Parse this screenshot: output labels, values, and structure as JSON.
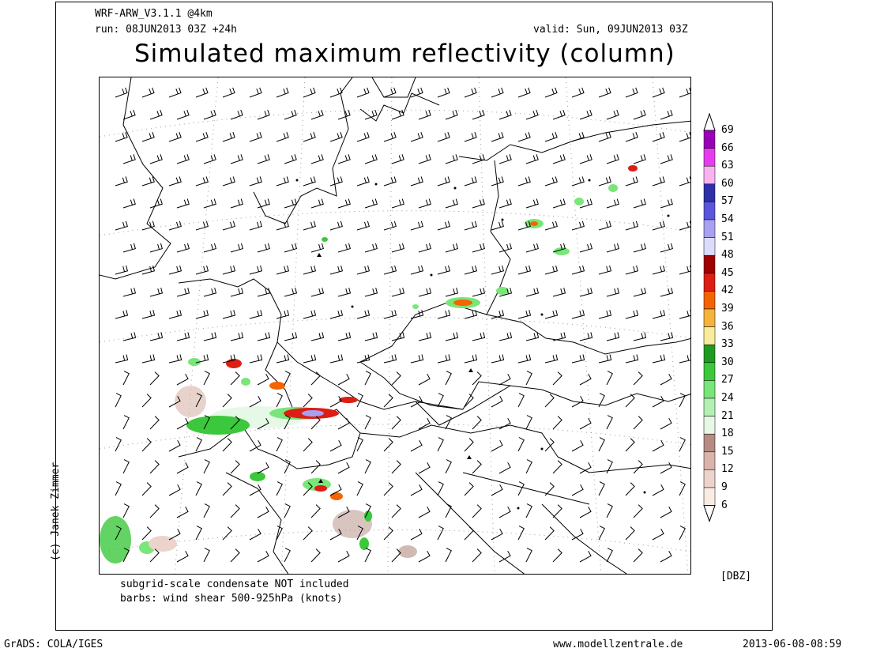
{
  "header": {
    "model": "WRF-ARW_V3.1.1 @4km",
    "run": "run: 08JUN2013 03Z +24h",
    "valid": "valid: Sun, 09JUN2013 03Z",
    "title": "Simulated maximum reflectivity (column)"
  },
  "footer": {
    "note1": "subgrid-scale condensate NOT included",
    "note2": "barbs: wind shear 500-925hPa (knots)",
    "grads": "GrADS: COLA/IGES",
    "website": "www.modellzentrale.de",
    "timestamp": "2013-06-08-08:59",
    "credit": "(c) Janek Zimmer"
  },
  "legend": {
    "unit": "[DBZ]",
    "levels": [
      "69",
      "66",
      "63",
      "60",
      "57",
      "54",
      "51",
      "48",
      "45",
      "42",
      "39",
      "36",
      "33",
      "30",
      "27",
      "24",
      "21",
      "18",
      "15",
      "12",
      "9",
      "6"
    ],
    "colors": [
      "#9a00b8",
      "#e63cf0",
      "#f8b4f0",
      "#2f2fa8",
      "#5a55dc",
      "#a8a0f0",
      "#dcdcfa",
      "#a00000",
      "#dc1e14",
      "#f46400",
      "#f4b43c",
      "#f8ec9c",
      "#1e9b1e",
      "#3cc83c",
      "#78e678",
      "#b4f0b4",
      "#e6f8e6",
      "#b48c82",
      "#d8b4aa",
      "#ecd4cc",
      "#f8ece4"
    ]
  },
  "colors": {
    "frame": "#000000",
    "borders": "#000000",
    "gridlines": "#999999"
  }
}
